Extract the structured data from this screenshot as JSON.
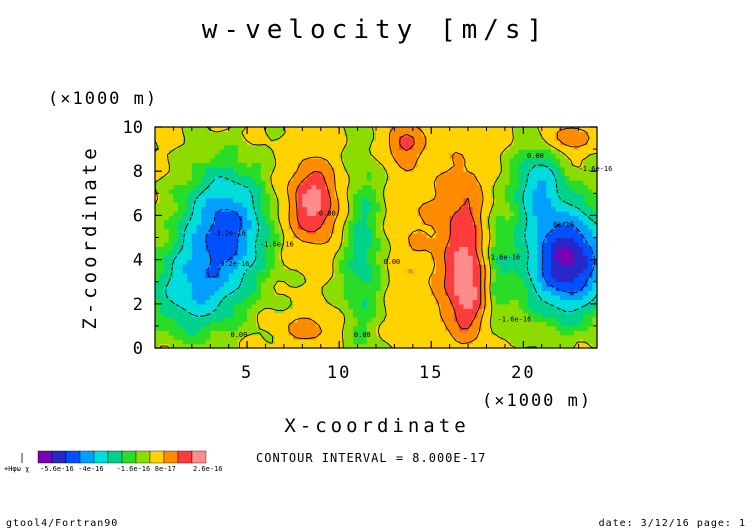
{
  "chart_data": {
    "type": "heatmap",
    "title": "w-velocity [m/s]",
    "xlabel": "X-coordinate",
    "ylabel": "Z-coordinate",
    "x_unit": "(×1000 m)",
    "y_unit": "(×1000 m)",
    "xlim": [
      0,
      24
    ],
    "ylim": [
      0,
      10
    ],
    "x_ticks": [
      5,
      10,
      15,
      20
    ],
    "y_ticks": [
      0,
      2,
      4,
      6,
      8,
      10
    ],
    "x": [
      0.5,
      1.5,
      2.5,
      3.5,
      4.5,
      5.5,
      6.5,
      7.5,
      8.5,
      9.5,
      10.5,
      11.5,
      12.5,
      13.5,
      14.5,
      15.5,
      16.5,
      17.5,
      18.5,
      19.5,
      20.5,
      21.5,
      22.5,
      23.5
    ],
    "z": [
      0.25,
      0.75,
      1.25,
      1.75,
      2.25,
      2.75,
      3.25,
      3.75,
      4.25,
      4.75,
      5.25,
      5.75,
      6.25,
      6.75,
      7.25,
      7.75,
      8.25,
      8.75,
      9.25,
      9.75
    ],
    "colorbar": {
      "colors": [
        "#7a00b4",
        "#2828c8",
        "#0050ff",
        "#00a0ff",
        "#00dcdc",
        "#00d28c",
        "#28dc28",
        "#8cdc00",
        "#ffd200",
        "#ff8c00",
        "#ff3c3c",
        "#ff8c8c"
      ],
      "labels": [
        "-5.6e-16",
        "-4e-16",
        "-1.6e-16",
        "8e-17",
        "2.6e-16"
      ],
      "cut_label": "+Hφω χ"
    },
    "contour_labels": [
      "-3.2e-16",
      "-3.2e-16",
      "-1.6e-16",
      "-1.6e-16",
      "0.00",
      "0.00",
      "0.00",
      "0.00",
      "0.00",
      "-1.6e-16",
      "8e-17",
      "-1.6e-16"
    ],
    "contour_interval_text": "CONTOUR INTERVAL = 8.000E-17"
  },
  "footer": {
    "left": "gtool4/Fortran90",
    "right": "date: 3/12/16 page: 1"
  }
}
